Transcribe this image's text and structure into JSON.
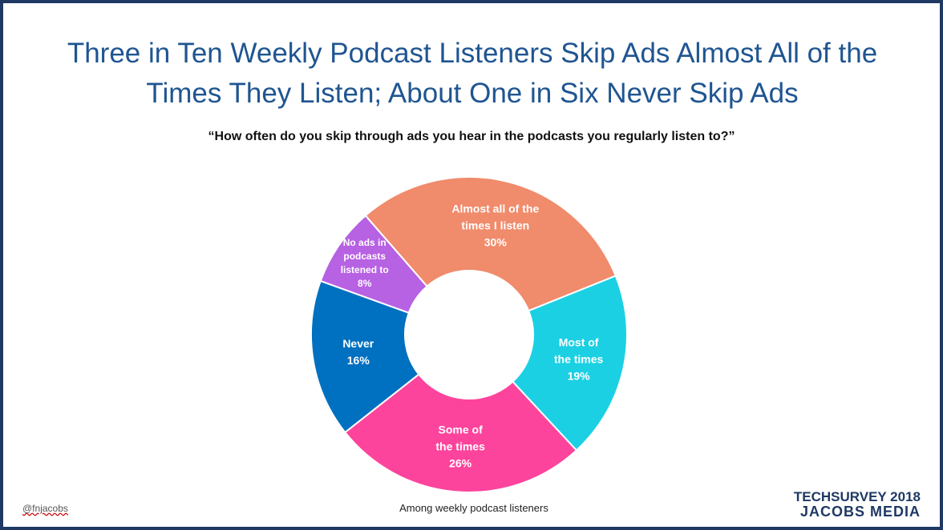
{
  "chart_data": {
    "type": "pie",
    "title": "Three in Ten Weekly Podcast Listeners Skip Ads Almost All of the Times They Listen; About One in Six Never Skip Ads",
    "subtitle": "“How often do you skip through ads you hear in the podcasts you regularly listen to?”",
    "note": "Among weekly podcast listeners",
    "categories": [
      "Almost all of the times I listen",
      "Most of the times",
      "Some of the times",
      "Never",
      "No ads in podcasts listened to"
    ],
    "values": [
      30,
      19,
      26,
      16,
      8
    ],
    "value_labels": [
      "30%",
      "19%",
      "26%",
      "16%",
      "8%"
    ],
    "colors": [
      "#f08b6b",
      "#1cd0e4",
      "#fd449c",
      "#0070c0",
      "#b761e3"
    ]
  },
  "footer": {
    "handle": "@fnjacobs",
    "logo_line1": "TECHSURVEY 2018",
    "logo_line2": "JACOBS MEDIA"
  }
}
